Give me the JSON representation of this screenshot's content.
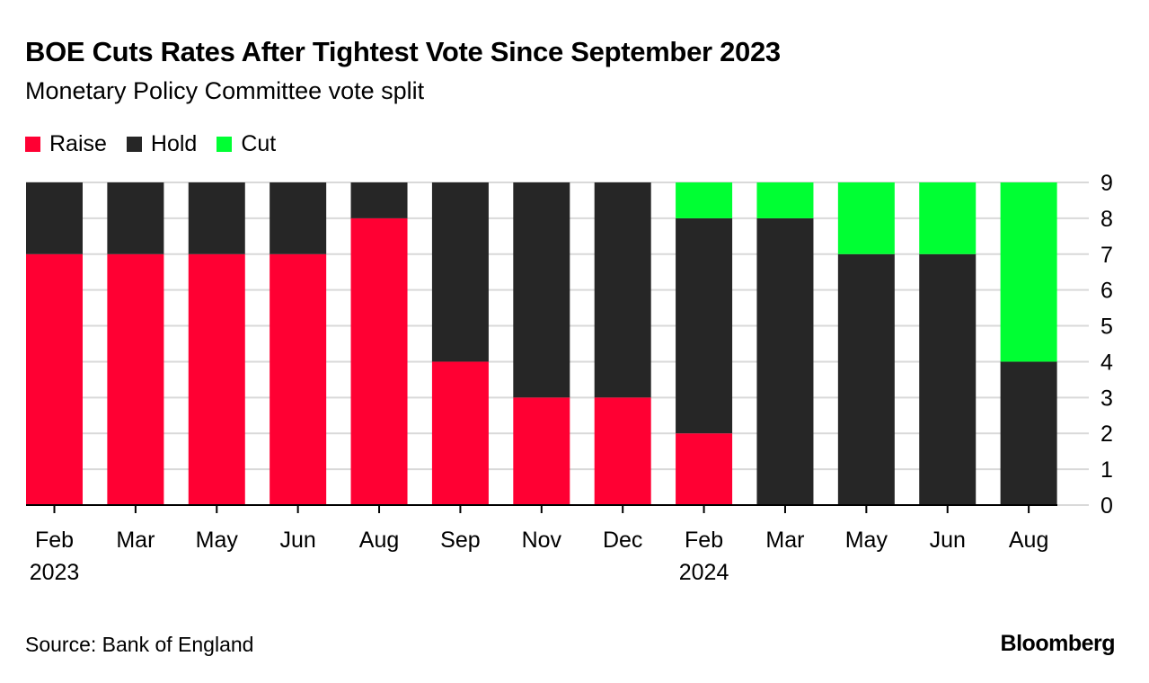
{
  "header": {
    "title": "BOE Cuts Rates After Tightest Vote Since September 2023",
    "subtitle": "Monetary Policy Committee vote split"
  },
  "legend": [
    {
      "label": "Raise",
      "color": "#ff0033"
    },
    {
      "label": "Hold",
      "color": "#262626"
    },
    {
      "label": "Cut",
      "color": "#00ff33"
    }
  ],
  "footer": {
    "source": "Source: Bank of England",
    "brand": "Bloomberg"
  },
  "chart_data": {
    "type": "bar",
    "stacked": true,
    "title": "BOE Cuts Rates After Tightest Vote Since September 2023",
    "subtitle": "Monetary Policy Committee vote split",
    "categories": [
      "Feb",
      "Mar",
      "May",
      "Jun",
      "Aug",
      "Sep",
      "Nov",
      "Dec",
      "Feb",
      "Mar",
      "May",
      "Jun",
      "Aug"
    ],
    "year_labels": [
      "2023",
      "",
      "",
      "",
      "",
      "",
      "",
      "",
      "2024",
      "",
      "",
      "",
      ""
    ],
    "series": [
      {
        "name": "Raise",
        "color": "#ff0033",
        "values": [
          7,
          7,
          7,
          7,
          8,
          4,
          3,
          3,
          2,
          0,
          0,
          0,
          0
        ]
      },
      {
        "name": "Hold",
        "color": "#262626",
        "values": [
          2,
          2,
          2,
          2,
          1,
          5,
          6,
          6,
          6,
          8,
          7,
          7,
          4
        ]
      },
      {
        "name": "Cut",
        "color": "#00ff33",
        "values": [
          0,
          0,
          0,
          0,
          0,
          0,
          0,
          0,
          1,
          1,
          2,
          2,
          5
        ]
      }
    ],
    "xlabel": "",
    "ylabel": "",
    "ylim": [
      0,
      9
    ],
    "yticks": [
      0,
      1,
      2,
      3,
      4,
      5,
      6,
      7,
      8,
      9
    ],
    "y_axis_side": "right",
    "grid": true,
    "legend_position": "top-left",
    "source": "Source: Bank of England"
  }
}
